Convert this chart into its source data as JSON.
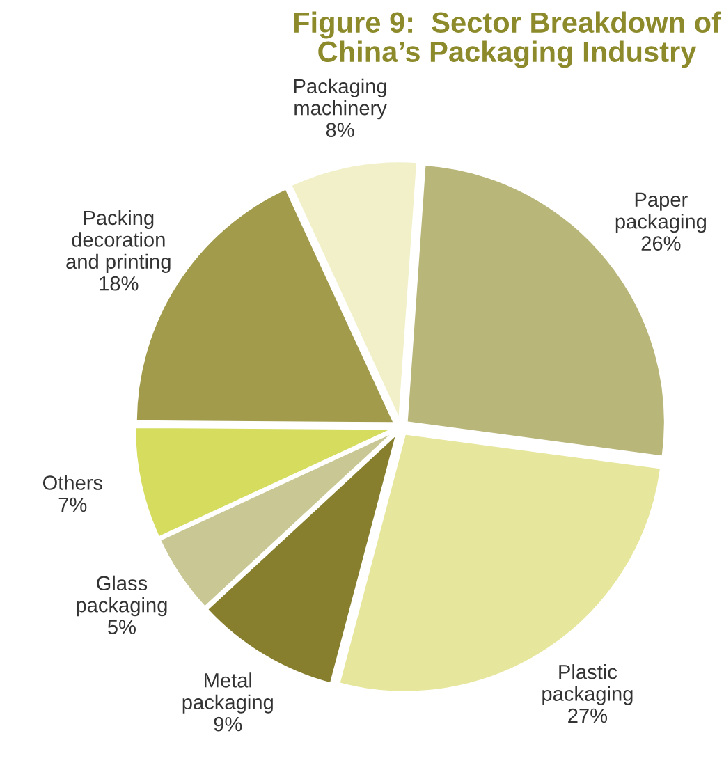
{
  "chart_data": {
    "type": "pie",
    "title": "Figure 9:  Sector Breakdown of\nChina’s Packaging Industry",
    "categories": [
      "Paper\npackaging",
      "Plastic\npackaging",
      "Metal\npackaging",
      "Glass\npackaging",
      "Others",
      "Packing\ndecoration\nand printing",
      "Packaging\nmachinery"
    ],
    "values": [
      26,
      27,
      9,
      5,
      7,
      18,
      8
    ],
    "value_labels": [
      "26%",
      "27%",
      "9%",
      "5%",
      "7%",
      "18%",
      "8%"
    ],
    "colors": [
      "#b9b67a",
      "#e6e69c",
      "#877f2e",
      "#c9c794",
      "#d5dc5e",
      "#a19b4b",
      "#f1f0c9"
    ]
  }
}
